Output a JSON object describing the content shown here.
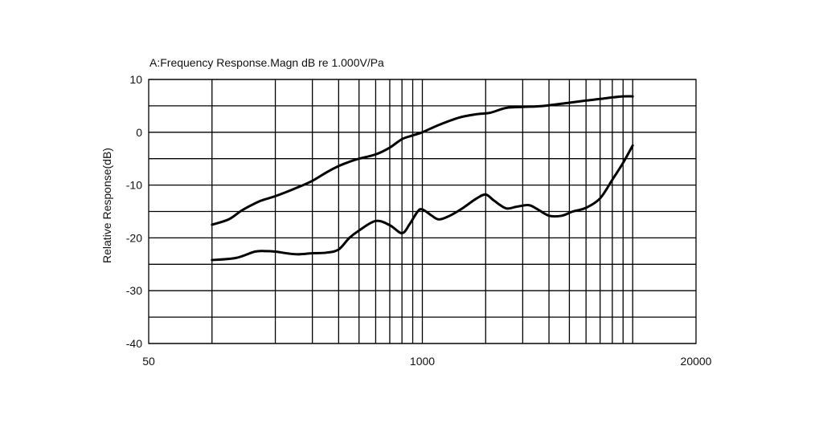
{
  "chart_data": {
    "type": "line",
    "title": "A:Frequency Response.Magn dB re 1.000V/Pa",
    "xlabel": "",
    "ylabel": "Relative Response(dB)",
    "x_scale": "log",
    "xlim": [
      50,
      20000
    ],
    "ylim": [
      -40,
      10
    ],
    "x_tick_labels": [
      {
        "value": 50,
        "label": "50"
      },
      {
        "value": 1000,
        "label": "1000"
      },
      {
        "value": 20000,
        "label": "20000"
      }
    ],
    "x_gridlines": [
      100,
      200,
      300,
      400,
      500,
      600,
      700,
      800,
      900,
      1000,
      2000,
      3000,
      4000,
      5000,
      6000,
      7000,
      8000,
      9000,
      10000
    ],
    "y_ticks": [
      10,
      0,
      -10,
      -20,
      -30,
      -40
    ],
    "y_gridlines": [
      10,
      5,
      0,
      -5,
      -10,
      -15,
      -20,
      -25,
      -30,
      -35,
      -40
    ],
    "grid": true,
    "legend": "none",
    "series": [
      {
        "color": "#000000",
        "points": [
          [
            100,
            -17.5
          ],
          [
            120,
            -16.5
          ],
          [
            140,
            -14.7
          ],
          [
            170,
            -13.0
          ],
          [
            200,
            -12.1
          ],
          [
            250,
            -10.6
          ],
          [
            300,
            -9.2
          ],
          [
            350,
            -7.6
          ],
          [
            400,
            -6.4
          ],
          [
            450,
            -5.6
          ],
          [
            500,
            -5.0
          ],
          [
            600,
            -4.2
          ],
          [
            700,
            -2.9
          ],
          [
            800,
            -1.3
          ],
          [
            900,
            -0.6
          ],
          [
            1000,
            0.0
          ],
          [
            1200,
            1.4
          ],
          [
            1500,
            2.8
          ],
          [
            1800,
            3.4
          ],
          [
            2100,
            3.7
          ],
          [
            2500,
            4.6
          ],
          [
            3000,
            4.8
          ],
          [
            3500,
            4.9
          ],
          [
            4000,
            5.1
          ],
          [
            5000,
            5.6
          ],
          [
            6000,
            6.0
          ],
          [
            7000,
            6.3
          ],
          [
            8000,
            6.6
          ],
          [
            9000,
            6.8
          ],
          [
            10000,
            6.8
          ]
        ]
      },
      {
        "color": "#000000",
        "points": [
          [
            100,
            -24.2
          ],
          [
            130,
            -23.8
          ],
          [
            160,
            -22.6
          ],
          [
            180,
            -22.5
          ],
          [
            200,
            -22.6
          ],
          [
            250,
            -23.1
          ],
          [
            300,
            -22.9
          ],
          [
            350,
            -22.8
          ],
          [
            400,
            -22.2
          ],
          [
            450,
            -20.0
          ],
          [
            500,
            -18.6
          ],
          [
            600,
            -16.8
          ],
          [
            700,
            -17.6
          ],
          [
            800,
            -19.1
          ],
          [
            870,
            -17.4
          ],
          [
            950,
            -15.0
          ],
          [
            1000,
            -14.6
          ],
          [
            1100,
            -15.7
          ],
          [
            1200,
            -16.5
          ],
          [
            1350,
            -15.8
          ],
          [
            1550,
            -14.4
          ],
          [
            1800,
            -12.6
          ],
          [
            2000,
            -11.8
          ],
          [
            2200,
            -13.0
          ],
          [
            2500,
            -14.4
          ],
          [
            2800,
            -14.1
          ],
          [
            3200,
            -13.8
          ],
          [
            3500,
            -14.5
          ],
          [
            4000,
            -15.8
          ],
          [
            4600,
            -15.8
          ],
          [
            5200,
            -15.0
          ],
          [
            6000,
            -14.3
          ],
          [
            7000,
            -12.5
          ],
          [
            8000,
            -9.0
          ],
          [
            9000,
            -5.8
          ],
          [
            10000,
            -2.5
          ]
        ]
      }
    ]
  }
}
